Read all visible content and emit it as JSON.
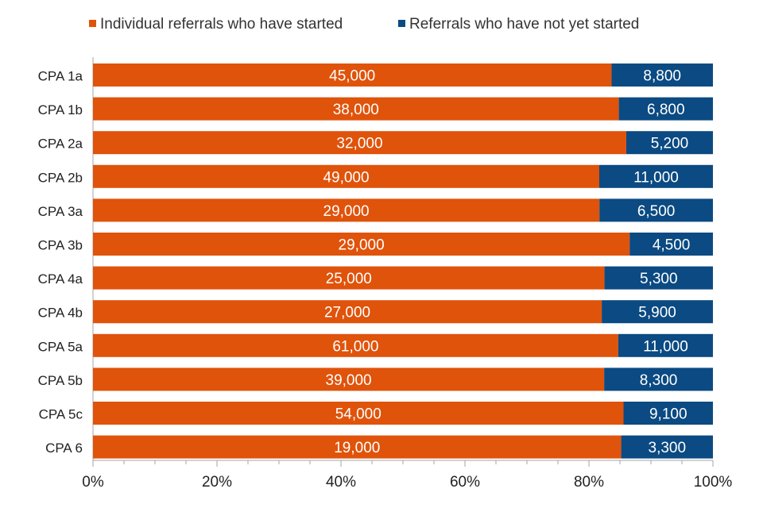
{
  "chart_data": {
    "type": "bar",
    "orientation": "horizontal",
    "stacked": "percent",
    "title": "",
    "xlabel": "",
    "ylabel": "",
    "xlim": [
      0,
      100
    ],
    "x_ticks": [
      "0%",
      "20%",
      "40%",
      "60%",
      "80%",
      "100%"
    ],
    "legend_position": "top",
    "categories": [
      "CPA 1a",
      "CPA 1b",
      "CPA 2a",
      "CPA 2b",
      "CPA 3a",
      "CPA 3b",
      "CPA 4a",
      "CPA 4b",
      "CPA 5a",
      "CPA 5b",
      "CPA 5c",
      "CPA 6"
    ],
    "series": [
      {
        "name": "Individual referrals who have started",
        "color": "#E0530B",
        "values": [
          45000,
          38000,
          32000,
          49000,
          29000,
          29000,
          25000,
          27000,
          61000,
          39000,
          54000,
          19000
        ],
        "labels": [
          "45,000",
          "38,000",
          "32,000",
          "49,000",
          "29,000",
          "29,000",
          "25,000",
          "27,000",
          "61,000",
          "39,000",
          "54,000",
          "19,000"
        ]
      },
      {
        "name": "Referrals who have not yet started",
        "color": "#0B4A82",
        "values": [
          8800,
          6800,
          5200,
          11000,
          6500,
          4500,
          5300,
          5900,
          11000,
          8300,
          9100,
          3300
        ],
        "labels": [
          "8,800",
          "6,800",
          "5,200",
          "11,000",
          "6,500",
          "4,500",
          "5,300",
          "5,900",
          "11,000",
          "8,300",
          "9,100",
          "3,300"
        ]
      }
    ]
  }
}
